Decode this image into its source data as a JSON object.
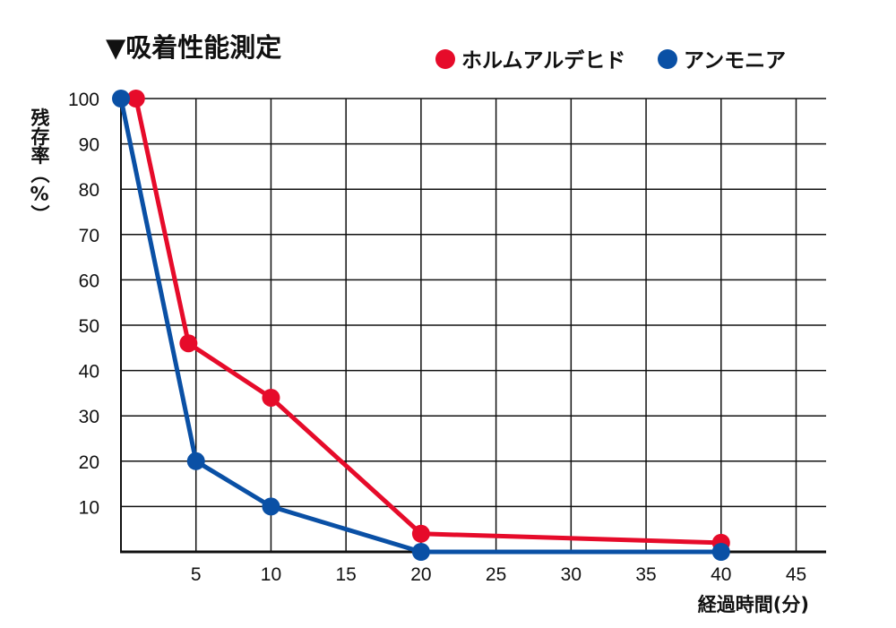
{
  "chart_data": {
    "type": "line",
    "title": "▼吸着性能測定",
    "ylabel": "残存率（%）",
    "xlabel": "経過時間(分)",
    "xlim": [
      0,
      47
    ],
    "ylim": [
      0,
      100
    ],
    "x_ticks": [
      5,
      10,
      15,
      20,
      25,
      30,
      35,
      40,
      45
    ],
    "y_ticks": [
      10,
      20,
      30,
      40,
      50,
      60,
      70,
      80,
      90,
      100
    ],
    "grid": true,
    "legend_position": "top-right",
    "series": [
      {
        "name": "ホルムアルデヒド",
        "color": "#e60b2a",
        "points": [
          [
            1,
            100
          ],
          [
            4.5,
            46
          ],
          [
            10,
            34
          ],
          [
            20,
            4
          ],
          [
            40,
            2
          ]
        ]
      },
      {
        "name": "アンモニア",
        "color": "#0a50a5",
        "points": [
          [
            0,
            100
          ],
          [
            5,
            20
          ],
          [
            10,
            10
          ],
          [
            20,
            0
          ],
          [
            40,
            0
          ]
        ]
      }
    ]
  }
}
